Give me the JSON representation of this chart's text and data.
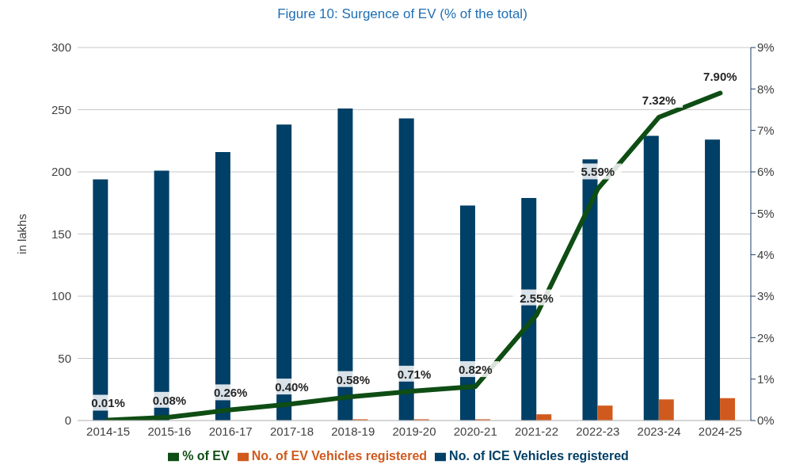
{
  "chart_data": {
    "type": "bar",
    "title": "Figure 10: Surgence of EV (% of the total)",
    "ylabel": "in lakhs",
    "categories": [
      "2014-15",
      "2015-16",
      "2016-17",
      "2017-18",
      "2018-19",
      "2019-20",
      "2020-21",
      "2021-22",
      "2022-23",
      "2023-24",
      "2024-25"
    ],
    "series": [
      {
        "name": "No. of ICE Vehicles registered",
        "color": "#003f66",
        "values": [
          194,
          201,
          216,
          238,
          251,
          243,
          173,
          179,
          210,
          229,
          226
        ]
      },
      {
        "name": "No. of EV Vehicles registered",
        "color": "#d05a1e",
        "values": [
          null,
          null,
          null,
          null,
          1,
          1,
          1,
          5,
          12,
          17,
          18
        ]
      },
      {
        "name": "% of EV",
        "type": "line",
        "axis": "y2",
        "color": "#0e4d14",
        "values": [
          0.01,
          0.08,
          0.26,
          0.4,
          0.58,
          0.71,
          0.82,
          2.55,
          5.59,
          7.32,
          7.9
        ],
        "value_labels": [
          "0.01%",
          "0.08%",
          "0.26%",
          "0.40%",
          "0.58%",
          "0.71%",
          "0.82%",
          "2.55%",
          "5.59%",
          "7.32%",
          "7.90%"
        ]
      }
    ],
    "ylim": [
      0,
      300
    ],
    "yticks": [
      0,
      50,
      100,
      150,
      200,
      250,
      300
    ],
    "y2lim": [
      0,
      9
    ],
    "y2ticks": [
      {
        "value": 0,
        "label": "0%"
      },
      {
        "value": 1,
        "label": "1%"
      },
      {
        "value": 2,
        "label": "2%"
      },
      {
        "value": 3,
        "label": "3%"
      },
      {
        "value": 4,
        "label": "4%"
      },
      {
        "value": 5,
        "label": "5%"
      },
      {
        "value": 6,
        "label": "6%"
      },
      {
        "value": 7,
        "label": "7%"
      },
      {
        "value": 8,
        "label": "8%"
      },
      {
        "value": 9,
        "label": "9%"
      }
    ],
    "grid": "y",
    "legend": "bottom",
    "marker": "none",
    "line_style": "solid"
  }
}
